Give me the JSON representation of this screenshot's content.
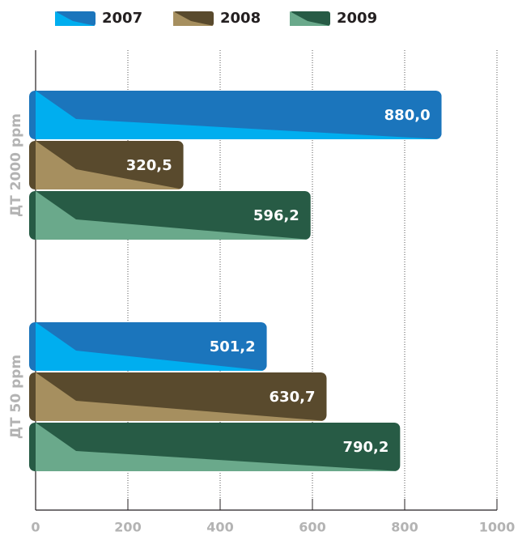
{
  "chart_data": {
    "type": "bar",
    "orientation": "horizontal",
    "categories": [
      "ДТ 2000 ppm",
      "ДТ 50 ppm"
    ],
    "series": [
      {
        "name": "2007",
        "color": "#1b75bc",
        "light": "#00aeef",
        "values": [
          880.0,
          501.2
        ],
        "value_labels": [
          "880,0",
          "501,2"
        ]
      },
      {
        "name": "2008",
        "color": "#594a2d",
        "light": "#a68f5f",
        "values": [
          320.5,
          630.7
        ],
        "value_labels": [
          "320,5",
          "630,7"
        ]
      },
      {
        "name": "2009",
        "color": "#275b45",
        "light": "#6aa98b",
        "values": [
          596.2,
          790.2
        ],
        "value_labels": [
          "596,2",
          "790,2"
        ]
      }
    ],
    "xlim": [
      0,
      1000
    ],
    "xticks": [
      0,
      200,
      400,
      600,
      800,
      1000
    ],
    "grid": true
  }
}
